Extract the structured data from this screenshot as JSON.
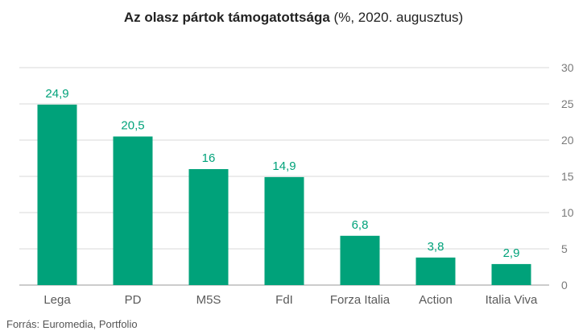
{
  "title": {
    "bold": "Az olasz pártok támogatottsága",
    "rest": " (%, 2020. augusztus)"
  },
  "source": "Forrás: Euromedia, Portfolio",
  "colors": {
    "bar": "#00a27a",
    "data_label": "#00a27a",
    "grid": "#d9d9d9",
    "axis": "#999999"
  },
  "chart_data": {
    "type": "bar",
    "categories": [
      "Lega",
      "PD",
      "M5S",
      "FdI",
      "Forza Italia",
      "Action",
      "Italia Viva"
    ],
    "values": [
      24.9,
      20.5,
      16,
      14.9,
      6.8,
      3.8,
      2.9
    ],
    "value_labels": [
      "24,9",
      "20,5",
      "16",
      "14,9",
      "6,8",
      "3,8",
      "2,9"
    ],
    "title": "Az olasz pártok támogatottsága (%, 2020. augusztus)",
    "ylim": [
      0,
      30
    ],
    "yticks": [
      0,
      5,
      10,
      15,
      20,
      25,
      30
    ],
    "y_axis_side": "right",
    "grid": true,
    "legend": "none"
  }
}
